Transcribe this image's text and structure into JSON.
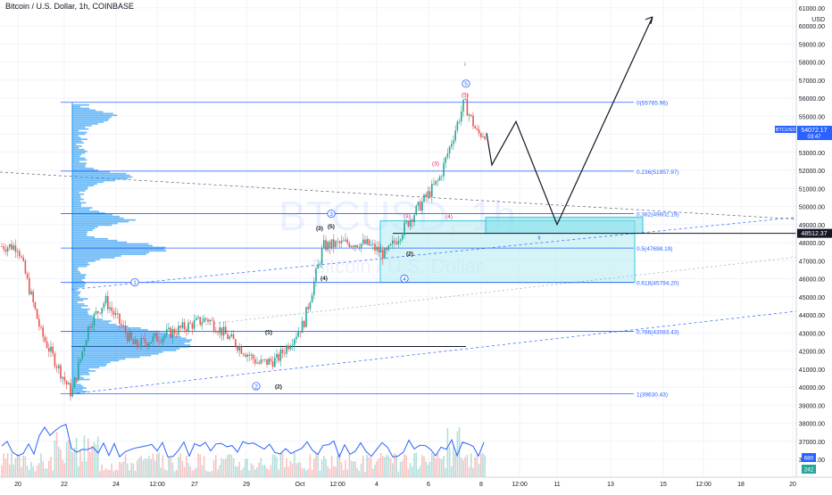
{
  "header": {
    "symbol_title": "Bitcoin / U.S. Dollar, 1h, COINBASE"
  },
  "watermark": {
    "symbol": "BTCUSD, 1h",
    "name": "Bitcoin / U.S. Dollar"
  },
  "colors": {
    "background": "#ffffff",
    "fib_line": "#2962ff",
    "up_candle": "#26a69a",
    "down_candle": "#ef5350",
    "profile_bar": "#2196f3",
    "projection": "#131722",
    "box_fill": "#b2ebf2",
    "box_border": "#00bcd4",
    "price_tag": "#2962ff",
    "wave_red": "#e91e63",
    "wave_blue": "#2962ff"
  },
  "chart_data": {
    "type": "candlestick",
    "title": "Bitcoin / U.S. Dollar, 1h, COINBASE",
    "y_axis": {
      "unit": "USD",
      "range": [
        35000,
        61500
      ],
      "tick_labels": [
        "61000.00",
        "60000.00",
        "59000.00",
        "58000.00",
        "57000.00",
        "56000.00",
        "55000.00",
        "54000.00",
        "53000.00",
        "52000.00",
        "51000.00",
        "50000.00",
        "49000.00",
        "48000.00",
        "47000.00",
        "46000.00",
        "45000.00",
        "44000.00",
        "43000.00",
        "42000.00",
        "41000.00",
        "40000.00",
        "39000.00",
        "38000.00",
        "37000.00",
        "36000.00"
      ],
      "top_label": "USD"
    },
    "x_axis": {
      "tick_labels": [
        "20",
        "22",
        "24",
        "12:00",
        "27",
        "29",
        "Oct",
        "12:00",
        "4",
        "6",
        "8",
        "12:00",
        "11",
        "13",
        "15",
        "12:00",
        "18",
        "20"
      ]
    },
    "price_path": [
      {
        "t": "Sep 20",
        "close": 47800
      },
      {
        "t": "Sep 21",
        "close": 43000
      },
      {
        "t": "Sep 21 low",
        "close": 39630
      },
      {
        "t": "Sep 22",
        "close": 43500
      },
      {
        "t": "Sep 23",
        "close": 44800
      },
      {
        "t": "Sep 24",
        "close": 42300
      },
      {
        "t": "Sep 25",
        "close": 42800
      },
      {
        "t": "Sep 26",
        "close": 43800
      },
      {
        "t": "Sep 27",
        "close": 42500
      },
      {
        "t": "Sep 28",
        "close": 41300
      },
      {
        "t": "Sep 29",
        "close": 41500
      },
      {
        "t": "Sep 30",
        "close": 43500
      },
      {
        "t": "Oct 1",
        "close": 47800
      },
      {
        "t": "Oct 2",
        "close": 48000
      },
      {
        "t": "Oct 3",
        "close": 47900
      },
      {
        "t": "Oct 4",
        "close": 47300
      },
      {
        "t": "Oct 5",
        "close": 49500
      },
      {
        "t": "Oct 6",
        "close": 51500
      },
      {
        "t": "Oct 6 high",
        "close": 55765.96
      },
      {
        "t": "Oct 7",
        "close": 54000
      },
      {
        "t": "Oct 8",
        "close": 54072.17
      }
    ],
    "projection_path": [
      {
        "t": "Oct 8",
        "price": 54072.17
      },
      {
        "t": "Oct 9",
        "price": 52300
      },
      {
        "t": "Oct 10",
        "price": 54700
      },
      {
        "t": "Oct 11",
        "price": 49000
      },
      {
        "t": "Oct 14",
        "price": 60500
      }
    ],
    "fib_levels": [
      {
        "label": "0(55765.96)",
        "price": 55765.96
      },
      {
        "label": "0.236(51957.97)",
        "price": 51957.97
      },
      {
        "label": "0.382(49602.19)",
        "price": 49602.19
      },
      {
        "label": "0.5(47698.19)",
        "price": 47698.19
      },
      {
        "label": "0.618(45794.20)",
        "price": 45794.2
      },
      {
        "label": "0.786(43083.43)",
        "price": 43083.43
      },
      {
        "label": "1(39630.43)",
        "price": 39630.43
      }
    ],
    "wave_labels": [
      {
        "text": "1",
        "style": "circle"
      },
      {
        "text": "2",
        "style": "circle"
      },
      {
        "text": "3",
        "style": "circle"
      },
      {
        "text": "4",
        "style": "circle"
      },
      {
        "text": "5",
        "style": "circle"
      },
      {
        "text": "(1)",
        "style": "paren"
      },
      {
        "text": "(2)",
        "style": "paren"
      },
      {
        "text": "(3)",
        "style": "paren"
      },
      {
        "text": "(4)",
        "style": "paren"
      },
      {
        "text": "(5)",
        "style": "paren"
      },
      {
        "text": "(1)",
        "style": "paren-red"
      },
      {
        "text": "(2)",
        "style": "paren"
      },
      {
        "text": "(3)",
        "style": "paren-red"
      },
      {
        "text": "(4)",
        "style": "paren-red"
      },
      {
        "text": "(5)",
        "style": "paren-red"
      },
      {
        "text": "i",
        "style": "plain"
      },
      {
        "text": "ii",
        "style": "plain"
      }
    ],
    "price_tags": [
      {
        "label": "BTCUSD",
        "value": "54072.17",
        "sub": "03:47"
      },
      {
        "label": "",
        "value": "48512.37",
        "sub": ""
      }
    ],
    "volume_tags": [
      "680",
      "242"
    ]
  }
}
